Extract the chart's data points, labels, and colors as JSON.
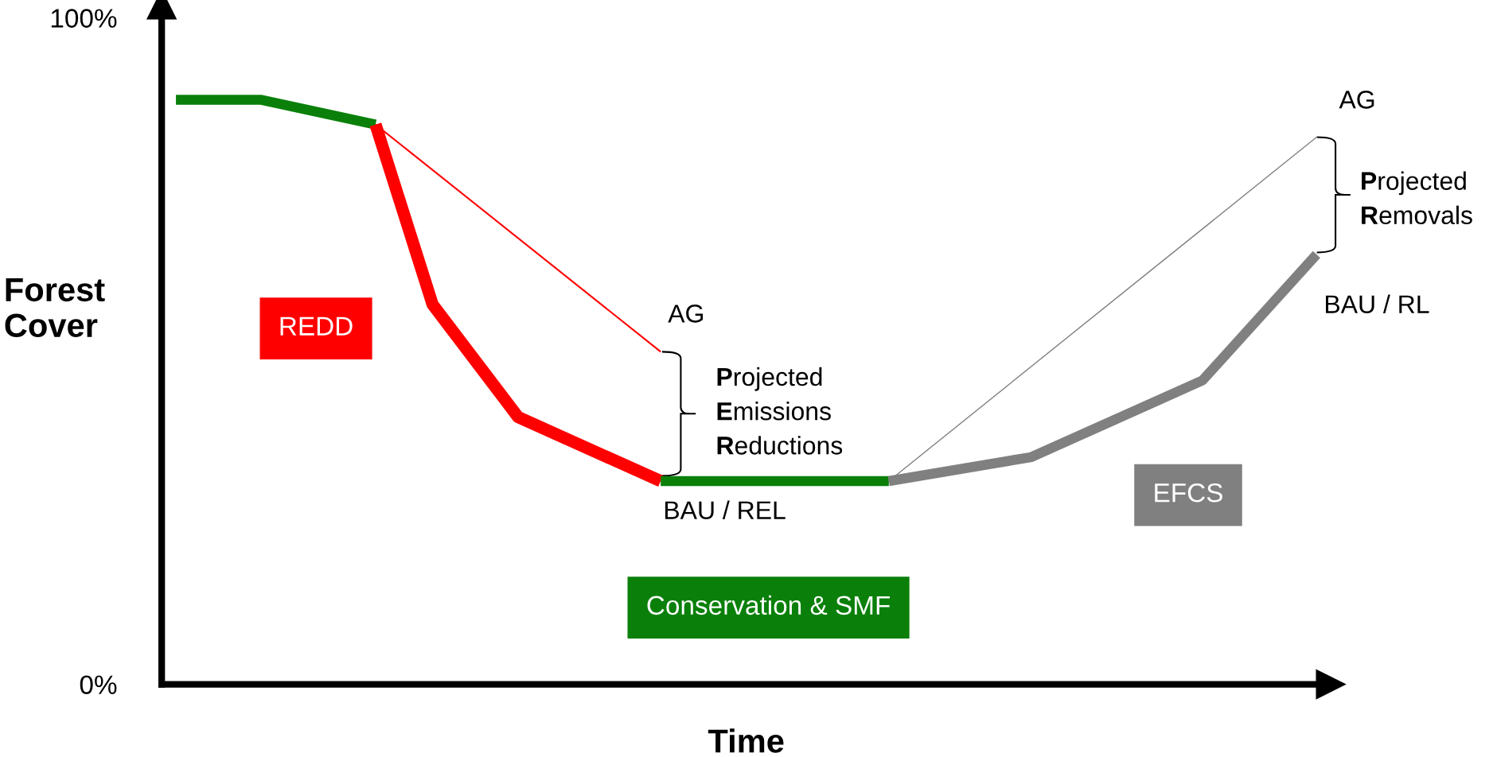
{
  "chart_data": {
    "type": "line",
    "xlabel": "Time",
    "ylabel": "Forest\nCover",
    "categories": [
      null,
      null,
      null,
      null,
      null,
      null,
      null,
      null,
      null,
      null,
      null,
      null,
      null,
      null,
      null,
      null,
      null,
      null,
      null,
      null,
      null,
      null,
      null,
      null,
      null,
      null,
      null,
      null,
      null,
      null,
      null,
      null,
      null,
      null,
      null,
      null,
      null,
      null,
      null,
      null,
      null
    ],
    "ylim": [
      0,
      102
    ],
    "yticks": [
      {
        "value": 0,
        "label": "0%"
      },
      {
        "value": 100,
        "label": "100%"
      }
    ],
    "tick_labels": "y",
    "grid": false,
    "legend": false,
    "marker": "none",
    "line_style": "solid",
    "series": [
      {
        "color": "#0a800a",
        "values": [
          87.7,
          null,
          null,
          87.7,
          null,
          null,
          null,
          84.0,
          null,
          null,
          null,
          null,
          null,
          null,
          null,
          null,
          null,
          null,
          null,
          null,
          null,
          null,
          null,
          null,
          null,
          null,
          null,
          null,
          null,
          null,
          null,
          null,
          null,
          null,
          null,
          null,
          null,
          null,
          null,
          null,
          null
        ]
      },
      {
        "name": "REDD",
        "color": "#ff0000",
        "values": [
          null,
          null,
          null,
          null,
          null,
          null,
          null,
          84.0,
          null,
          57.0,
          null,
          null,
          40.1,
          null,
          null,
          null,
          null,
          30.5,
          null,
          null,
          null,
          null,
          null,
          null,
          null,
          null,
          null,
          null,
          null,
          null,
          null,
          null,
          null,
          null,
          null,
          null,
          null,
          null,
          null,
          null,
          null
        ]
      },
      {
        "name": "Conservation & SMF",
        "color": "#0a800a",
        "values": [
          null,
          null,
          null,
          null,
          null,
          null,
          null,
          null,
          null,
          null,
          null,
          null,
          null,
          null,
          null,
          null,
          null,
          30.5,
          null,
          null,
          null,
          null,
          null,
          null,
          null,
          30.5,
          null,
          null,
          null,
          null,
          null,
          null,
          null,
          null,
          null,
          null,
          null,
          null,
          null,
          null,
          null
        ]
      },
      {
        "name": "EFCS",
        "color": "#808080",
        "values": [
          null,
          null,
          null,
          null,
          null,
          null,
          null,
          null,
          null,
          null,
          null,
          null,
          null,
          null,
          null,
          null,
          null,
          null,
          null,
          null,
          null,
          null,
          null,
          null,
          null,
          30.5,
          null,
          null,
          null,
          null,
          34.1,
          null,
          null,
          null,
          null,
          null,
          45.6,
          null,
          null,
          null,
          64.5
        ]
      },
      {
        "color": "#ff0000",
        "values": [
          null,
          null,
          null,
          null,
          null,
          null,
          null,
          84.0,
          null,
          null,
          null,
          null,
          null,
          null,
          null,
          null,
          null,
          49.9,
          null,
          null,
          null,
          null,
          null,
          null,
          null,
          null,
          null,
          null,
          null,
          null,
          null,
          null,
          null,
          null,
          null,
          null,
          null,
          null,
          null,
          null,
          null
        ]
      },
      {
        "color": "#808080",
        "values": [
          null,
          null,
          null,
          null,
          null,
          null,
          null,
          null,
          null,
          null,
          null,
          null,
          null,
          null,
          null,
          null,
          null,
          null,
          null,
          null,
          null,
          null,
          null,
          null,
          null,
          30.5,
          null,
          null,
          null,
          null,
          null,
          null,
          null,
          null,
          null,
          null,
          null,
          null,
          null,
          null,
          82.1
        ]
      }
    ],
    "annotations": [
      "AG",
      "Projected\nEmissions\nReductions",
      "BAU / REL",
      "AG",
      "Projected\nRemovals",
      "BAU / RL"
    ]
  }
}
